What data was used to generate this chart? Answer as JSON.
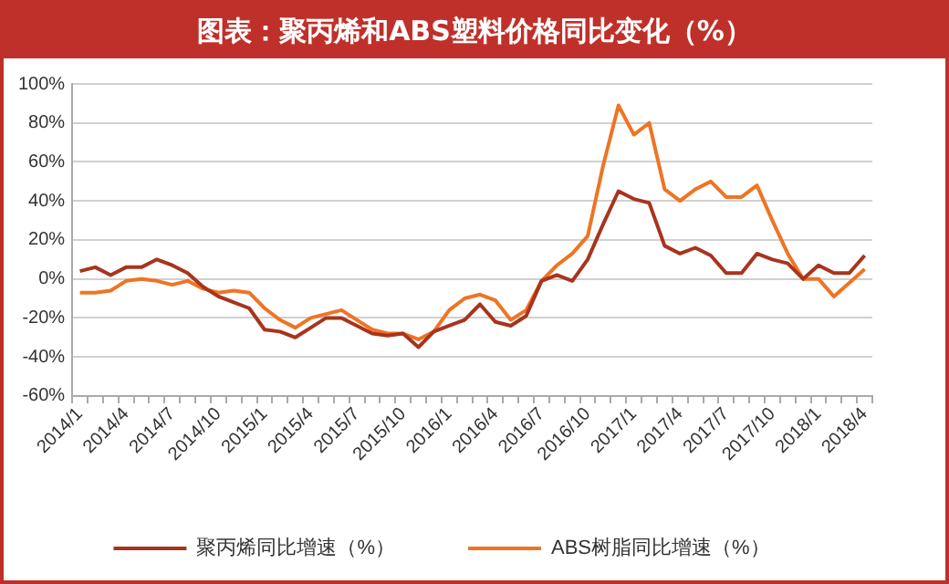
{
  "chart_data": {
    "type": "line",
    "title": "图表：聚丙烯和ABS塑料价格同比变化（%）",
    "categories": [
      "2014/1",
      null,
      null,
      "2014/4",
      null,
      null,
      "2014/7",
      null,
      null,
      "2014/10",
      null,
      null,
      "2015/1",
      null,
      null,
      "2015/4",
      null,
      null,
      "2015/7",
      null,
      null,
      "2015/10",
      null,
      null,
      "2016/1",
      null,
      null,
      "2016/4",
      null,
      null,
      "2016/7",
      null,
      null,
      "2016/10",
      null,
      null,
      "2017/1",
      null,
      null,
      "2017/4",
      null,
      null,
      "2017/7",
      null,
      null,
      "2017/10",
      null,
      null,
      "2018/1",
      null,
      null,
      "2018/4"
    ],
    "series": [
      {
        "name": "聚丙烯同比增速（%）",
        "color": "#a8341e",
        "values": [
          4,
          6,
          2,
          6,
          6,
          10,
          7,
          3,
          -4,
          -9,
          -12,
          -15,
          -26,
          -27,
          -30,
          -25,
          -20,
          -20,
          -24,
          -28,
          -29,
          -28,
          -35,
          -27,
          -24,
          -21,
          -13,
          -22,
          -24,
          -19,
          -1,
          2,
          -1,
          10,
          28,
          45,
          41,
          39,
          17,
          13,
          16,
          12,
          3,
          3,
          13,
          10,
          8,
          0,
          7,
          3,
          3,
          12
        ]
      },
      {
        "name": "ABS树脂同比增速（%）",
        "color": "#ee7424",
        "values": [
          -7,
          -7,
          -6,
          -1,
          0,
          -1,
          -3,
          -1,
          -5,
          -7,
          -6,
          -7,
          -15,
          -21,
          -25,
          -20,
          -18,
          -16,
          -21,
          -26,
          -28,
          -28,
          -31,
          -27,
          -16,
          -10,
          -8,
          -11,
          -21,
          -16,
          -1,
          7,
          13,
          22,
          58,
          89,
          74,
          80,
          46,
          40,
          46,
          50,
          42,
          42,
          48,
          30,
          13,
          0,
          0,
          -9,
          -2,
          5
        ]
      }
    ],
    "ylim": [
      -60,
      100
    ],
    "yticks": [
      {
        "value": -60,
        "label": "-60%"
      },
      {
        "value": -40,
        "label": "-40%"
      },
      {
        "value": -20,
        "label": "-20%"
      },
      {
        "value": 0,
        "label": "0%"
      },
      {
        "value": 20,
        "label": "20%"
      },
      {
        "value": 40,
        "label": "40%"
      },
      {
        "value": 60,
        "label": "60%"
      },
      {
        "value": 80,
        "label": "80%"
      },
      {
        "value": 100,
        "label": "100%"
      }
    ],
    "grid": "y",
    "legend": "bottom",
    "marker": "none",
    "line_style": "solid"
  }
}
